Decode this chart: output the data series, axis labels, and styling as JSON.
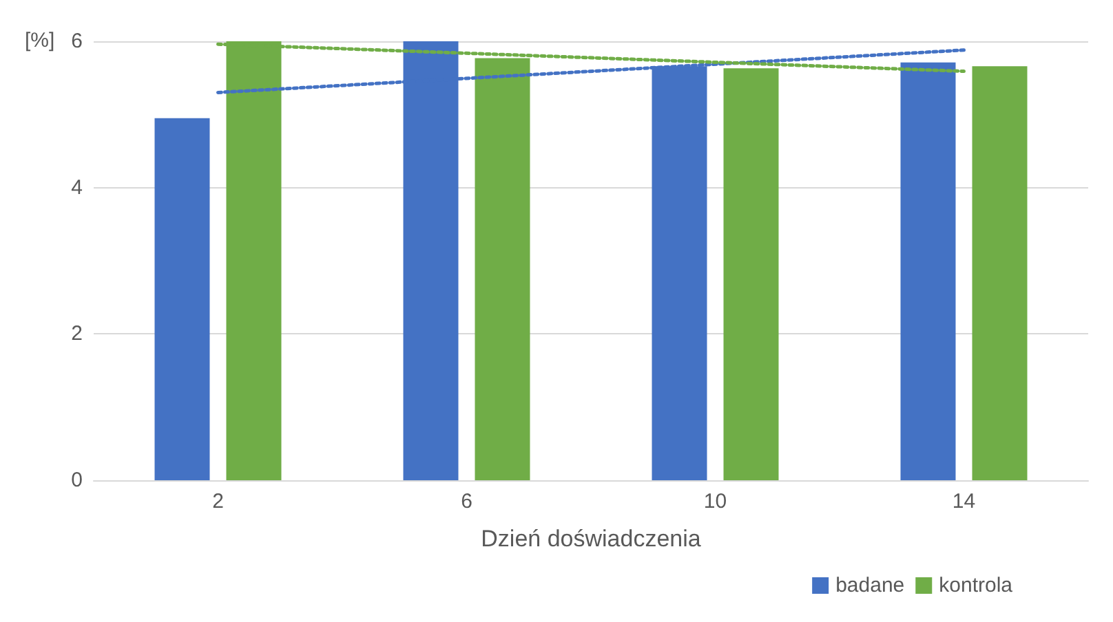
{
  "chart_data": {
    "type": "bar",
    "xlabel": "Dzień doświadczenia",
    "ylabel": "[%]",
    "categories": [
      "2",
      "6",
      "10",
      "14"
    ],
    "series": [
      {
        "name": "badane",
        "color": "#4472c4",
        "values": [
          4.95,
          6.0,
          5.66,
          5.71
        ]
      },
      {
        "name": "kontrola",
        "color": "#70ad47",
        "values": [
          6.0,
          5.77,
          5.63,
          5.66
        ]
      },
      {
        "type": "line",
        "color": "#4472c4",
        "x": [
          "2",
          "14"
        ],
        "values": [
          5.3,
          5.88
        ],
        "line_style": "dotted",
        "marker": "none"
      },
      {
        "type": "line",
        "color": "#70ad47",
        "x": [
          "2",
          "14"
        ],
        "values": [
          5.96,
          5.59
        ],
        "line_style": "dotted",
        "marker": "none"
      }
    ],
    "ylim": [
      0,
      6
    ],
    "yticks": [
      0,
      2,
      4,
      6
    ],
    "grid": "y",
    "legend": "bottom right"
  }
}
